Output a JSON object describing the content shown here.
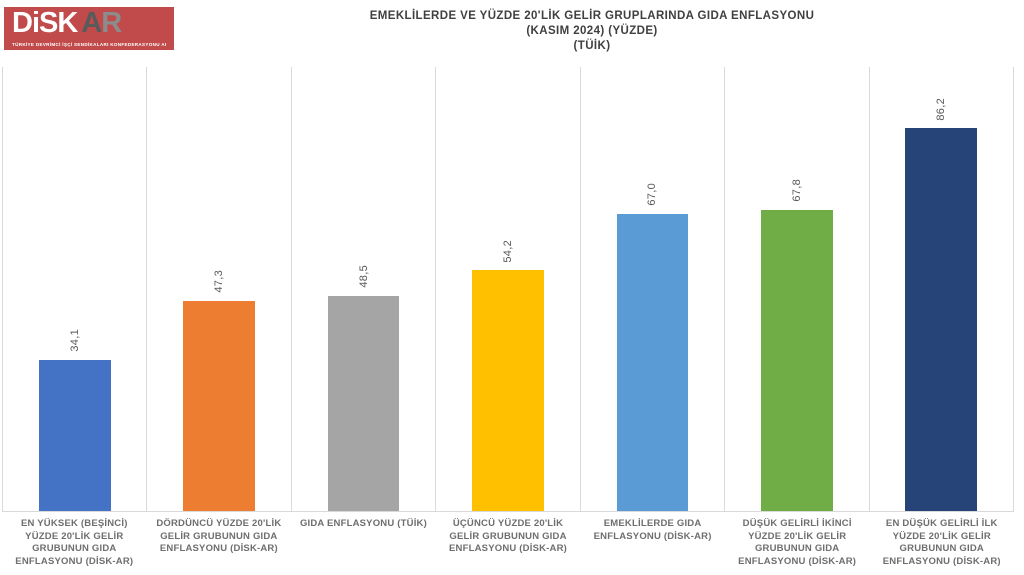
{
  "logo": {
    "brand_disk": "DiSK",
    "brand_a": "A",
    "brand_r": "R",
    "subtitle": "TÜRKİYE DEVRİMCİ İŞÇİ SENDİKALARI KONFEDERASYONU ARAŞTIRMA MERKEZİ",
    "bg_color": "#c14b4b"
  },
  "title": {
    "line1": "EMEKLİLERDE VE YÜZDE 20'LİK GELİR GRUPLARINDA GIDA ENFLASYONU",
    "line2": "(KASIM 2024) (YÜZDE)",
    "line3": "(TÜİK)"
  },
  "chart_data": {
    "type": "bar",
    "title": "EMEKLİLERDE VE YÜZDE 20'LİK GELİR GRUPLARINDA GIDA ENFLASYONU (KASIM 2024) (YÜZDE) (TÜİK)",
    "source": "TÜİK",
    "categories": [
      "EN YÜKSEK (BEŞİNCİ) YÜZDE 20'LİK GELİR GRUBUNUN GIDA ENFLASYONU (DİSK-AR)",
      "DÖRDÜNCÜ YÜZDE 20'LİK GELİR GRUBUNUN GIDA ENFLASYONU (DİSK-AR)",
      "GIDA ENFLASYONU (TÜİK)",
      "ÜÇÜNCÜ YÜZDE 20'LİK GELİR GRUBUNUN GIDA ENFLASYONU (DİSK-AR)",
      "EMEKLİLERDE GIDA ENFLASYONU (DİSK-AR)",
      "DÜŞÜK GELİRLİ İKİNCİ YÜZDE 20'LİK GELİR GRUBUNUN GIDA ENFLASYONU (DİSK-AR)",
      "EN DÜŞÜK GELİRLİ İLK YÜZDE 20'LİK GELİR GRUBUNUN GIDA ENFLASYONU (DİSK-AR)"
    ],
    "values": [
      34.1,
      47.3,
      48.5,
      54.2,
      67.0,
      67.8,
      86.2
    ],
    "value_labels": [
      "34,1",
      "47,3",
      "48,5",
      "54,2",
      "67,0",
      "67,8",
      "86,2"
    ],
    "colors": [
      "#4472c4",
      "#ed7d31",
      "#a5a5a5",
      "#ffc000",
      "#5b9bd5",
      "#70ad47",
      "#264478"
    ],
    "ylim": [
      0,
      100
    ],
    "grid": "vertical category separators, color #d9d9d9",
    "legend": "none",
    "value_label_style": "rotated 90deg above bar"
  }
}
